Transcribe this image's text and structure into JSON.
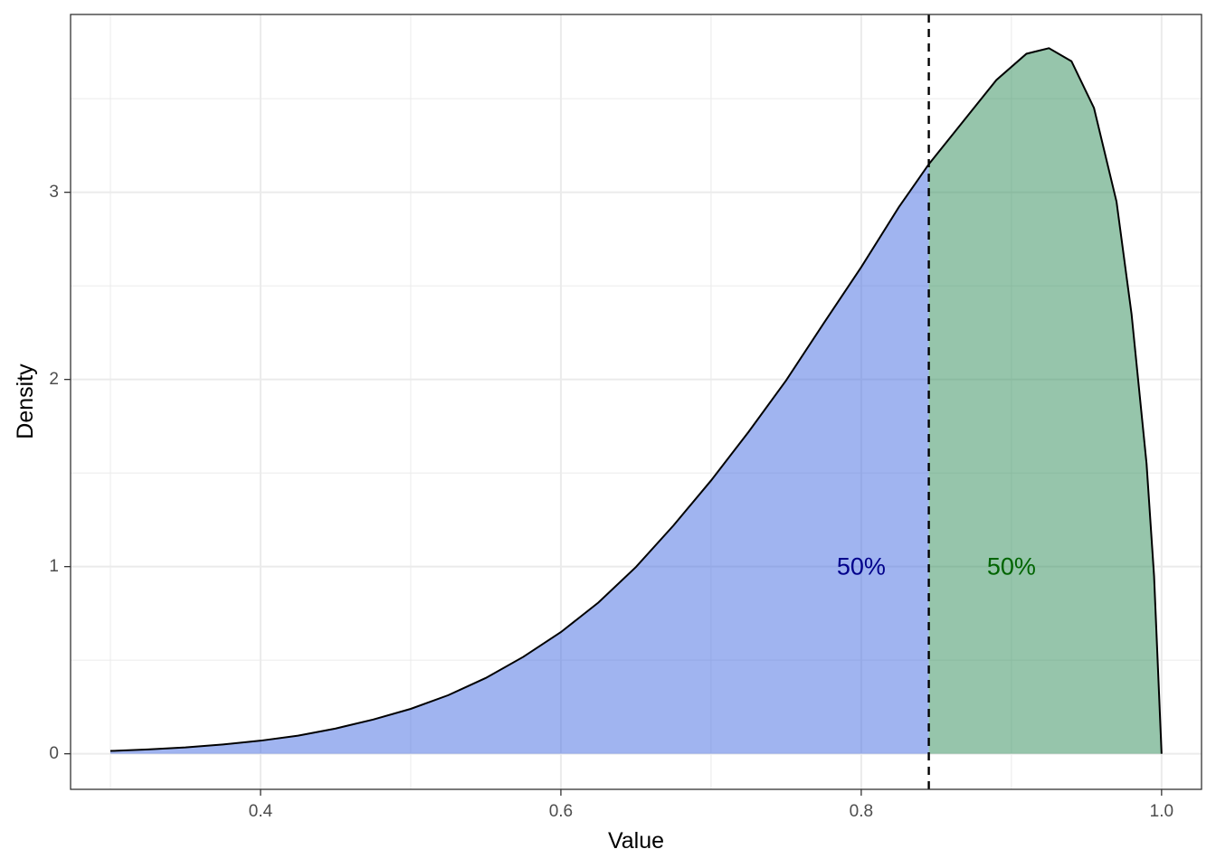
{
  "chart_data": {
    "type": "area",
    "title": "",
    "xlabel": "Value",
    "ylabel": "Density",
    "xlim": [
      0.2735,
      1.0266
    ],
    "ylim": [
      -0.19,
      3.95
    ],
    "x_ticks": [
      0.4,
      0.6,
      0.8,
      1.0
    ],
    "x_tick_labels": [
      "0.4",
      "0.6",
      "0.8",
      "1.0"
    ],
    "y_ticks": [
      0,
      1,
      2,
      3
    ],
    "y_tick_labels": [
      "0",
      "1",
      "2",
      "3"
    ],
    "grid": true,
    "legend": "none",
    "median": 0.845,
    "curve": {
      "x": [
        0.3,
        0.325,
        0.35,
        0.375,
        0.4,
        0.425,
        0.45,
        0.475,
        0.5,
        0.525,
        0.55,
        0.575,
        0.6,
        0.625,
        0.65,
        0.675,
        0.7,
        0.725,
        0.75,
        0.775,
        0.8,
        0.825,
        0.845,
        0.87,
        0.89,
        0.91,
        0.925,
        0.94,
        0.955,
        0.97,
        0.98,
        0.99,
        0.995,
        1.0
      ],
      "y": [
        0.015,
        0.023,
        0.034,
        0.05,
        0.07,
        0.097,
        0.135,
        0.183,
        0.24,
        0.313,
        0.405,
        0.518,
        0.65,
        0.808,
        0.998,
        1.22,
        1.46,
        1.72,
        1.995,
        2.3,
        2.6,
        2.92,
        3.15,
        3.4,
        3.6,
        3.74,
        3.77,
        3.7,
        3.45,
        2.95,
        2.35,
        1.55,
        0.95,
        0.0
      ]
    },
    "regions": [
      {
        "label": "50%",
        "fill": "#4169e1",
        "text_color": "#00008b",
        "label_x": 0.8,
        "label_y": 1.0
      },
      {
        "label": "50%",
        "fill": "#2e8b57",
        "text_color": "#006400",
        "label_x": 0.9,
        "label_y": 1.0
      }
    ],
    "colors": {
      "panel_border": "#333333",
      "grid": "#ebebeb",
      "curve": "#000000",
      "fill_alpha": 0.5
    }
  }
}
